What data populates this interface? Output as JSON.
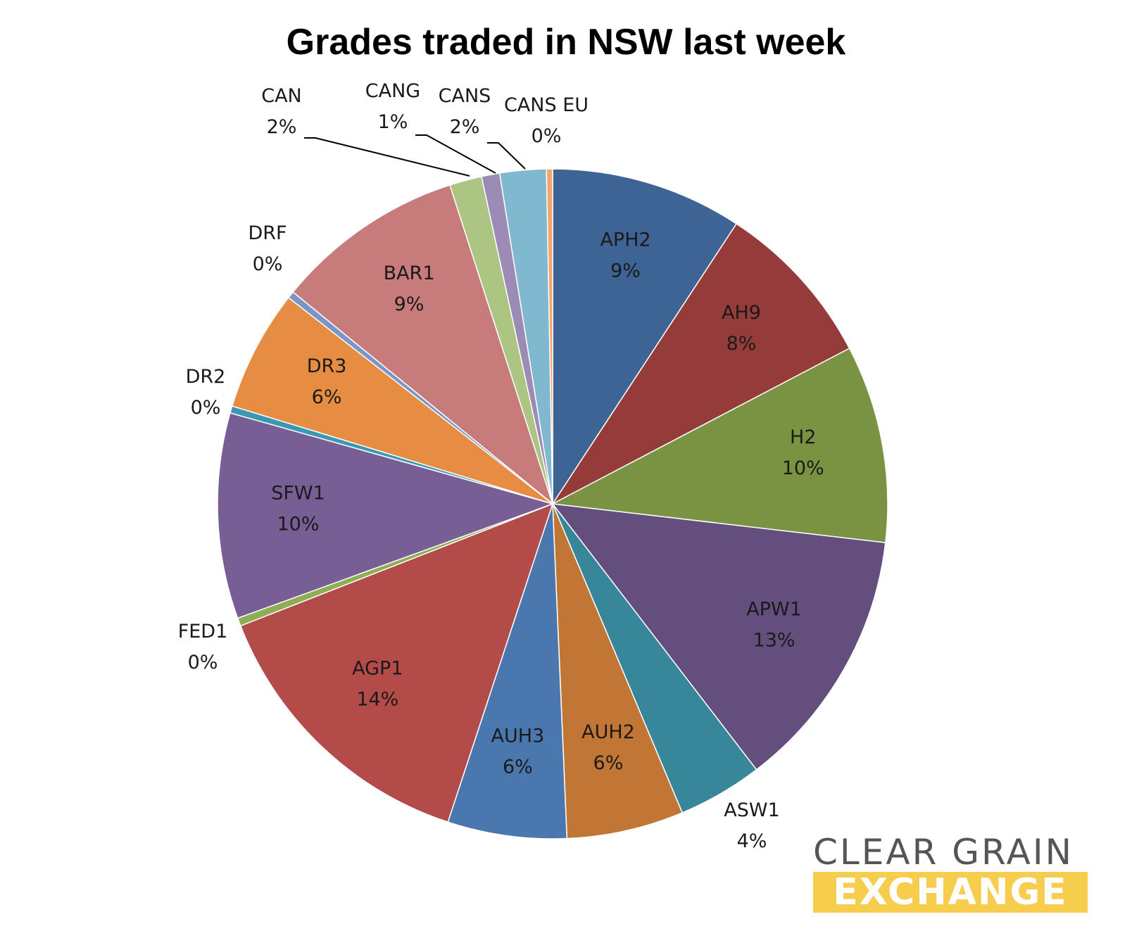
{
  "chart_data": {
    "type": "pie",
    "title": "Grades traded in NSW last week",
    "start": "top",
    "direction": "clockwise",
    "slices": [
      {
        "label": "APH2",
        "value": 9.5,
        "pct": "9%",
        "color": "#3e6496",
        "inside": true
      },
      {
        "label": "AH9",
        "value": 8.3,
        "pct": "8%",
        "color": "#953c3b",
        "inside": true
      },
      {
        "label": "H2",
        "value": 9.8,
        "pct": "10%",
        "color": "#7a9343",
        "inside": true
      },
      {
        "label": "APW1",
        "value": 13.1,
        "pct": "13%",
        "color": "#634e7e",
        "inside": true
      },
      {
        "label": "ASW1",
        "value": 4.2,
        "pct": "4%",
        "color": "#38869a",
        "inside": false
      },
      {
        "label": "AUH2",
        "value": 5.8,
        "pct": "6%",
        "color": "#c27635",
        "inside": true
      },
      {
        "label": "AUH3",
        "value": 5.9,
        "pct": "6%",
        "color": "#4a77ae",
        "inside": true
      },
      {
        "label": "AGP1",
        "value": 14.4,
        "pct": "14%",
        "color": "#b34b48",
        "inside": true
      },
      {
        "label": "FED1",
        "value": 0.4,
        "pct": "0%",
        "color": "#90ad55",
        "inside": false
      },
      {
        "label": "SFW1",
        "value": 10.2,
        "pct": "10%",
        "color": "#775e95",
        "inside": true
      },
      {
        "label": "DR2",
        "value": 0.35,
        "pct": "0%",
        "color": "#3c97b4",
        "inside": false
      },
      {
        "label": "DR3",
        "value": 6.0,
        "pct": "6%",
        "color": "#e68c43",
        "inside": true
      },
      {
        "label": "DRF",
        "value": 0.35,
        "pct": "0%",
        "color": "#7a96c6",
        "inside": false
      },
      {
        "label": "BAR1",
        "value": 9.4,
        "pct": "9%",
        "color": "#c77b7a",
        "inside": true
      },
      {
        "label": "CAN",
        "value": 1.6,
        "pct": "2%",
        "color": "#acc582",
        "inside": false
      },
      {
        "label": "CANG",
        "value": 0.9,
        "pct": "1%",
        "color": "#9c8bb5",
        "inside": false
      },
      {
        "label": "CANS",
        "value": 2.3,
        "pct": "2%",
        "color": "#7fb8cf",
        "inside": false
      },
      {
        "label": "CANS EU",
        "value": 0.3,
        "pct": "0%",
        "color": "#f5a46b",
        "inside": false
      }
    ]
  },
  "logo": {
    "line1": "CLEAR GRAIN",
    "line2": "EXCHANGE"
  }
}
